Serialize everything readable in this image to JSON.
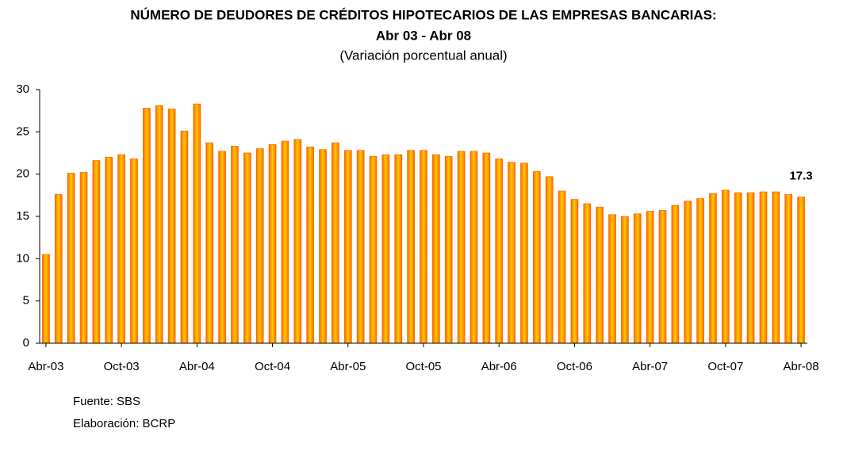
{
  "chart_data": {
    "type": "bar",
    "title": "NÚMERO DE DEUDORES DE CRÉDITOS HIPOTECARIOS DE LAS EMPRESAS BANCARIAS:",
    "subtitle": "Abr 03 - Abr 08",
    "y_axis_label": "(Variación porcentual anual)",
    "categories": [
      "Abr-03",
      null,
      null,
      null,
      null,
      null,
      "Oct-03",
      null,
      null,
      null,
      null,
      null,
      "Abr-04",
      null,
      null,
      null,
      null,
      null,
      "Oct-04",
      null,
      null,
      null,
      null,
      null,
      "Abr-05",
      null,
      null,
      null,
      null,
      null,
      "Oct-05",
      null,
      null,
      null,
      null,
      null,
      "Abr-06",
      null,
      null,
      null,
      null,
      null,
      "Oct-06",
      null,
      null,
      null,
      null,
      null,
      "Abr-07",
      null,
      null,
      null,
      null,
      null,
      "Oct-07",
      null,
      null,
      null,
      null,
      null,
      "Abr-08"
    ],
    "values": [
      10.5,
      17.6,
      20.1,
      20.2,
      21.6,
      22.0,
      22.3,
      21.8,
      27.8,
      28.1,
      27.7,
      25.1,
      28.3,
      23.7,
      22.7,
      23.3,
      22.5,
      23.0,
      23.5,
      23.9,
      24.1,
      23.2,
      22.9,
      23.7,
      22.8,
      22.8,
      22.1,
      22.3,
      22.3,
      22.8,
      22.8,
      22.3,
      22.1,
      22.7,
      22.7,
      22.5,
      21.8,
      21.4,
      21.3,
      20.3,
      19.7,
      18.0,
      17.0,
      16.5,
      16.1,
      15.2,
      15.0,
      15.3,
      15.6,
      15.7,
      16.3,
      16.8,
      17.1,
      17.7,
      18.1,
      17.8,
      17.8,
      17.9,
      17.9,
      17.6,
      17.3
    ],
    "color": "#ffcc00",
    "edge_color": "#ff6600",
    "ylim": [
      0,
      30
    ],
    "yticks": [
      0,
      5,
      10,
      15,
      20,
      25,
      30
    ],
    "grid": false,
    "footnotes": [
      "Fuente: SBS",
      "Elaboración: BCRP"
    ]
  }
}
